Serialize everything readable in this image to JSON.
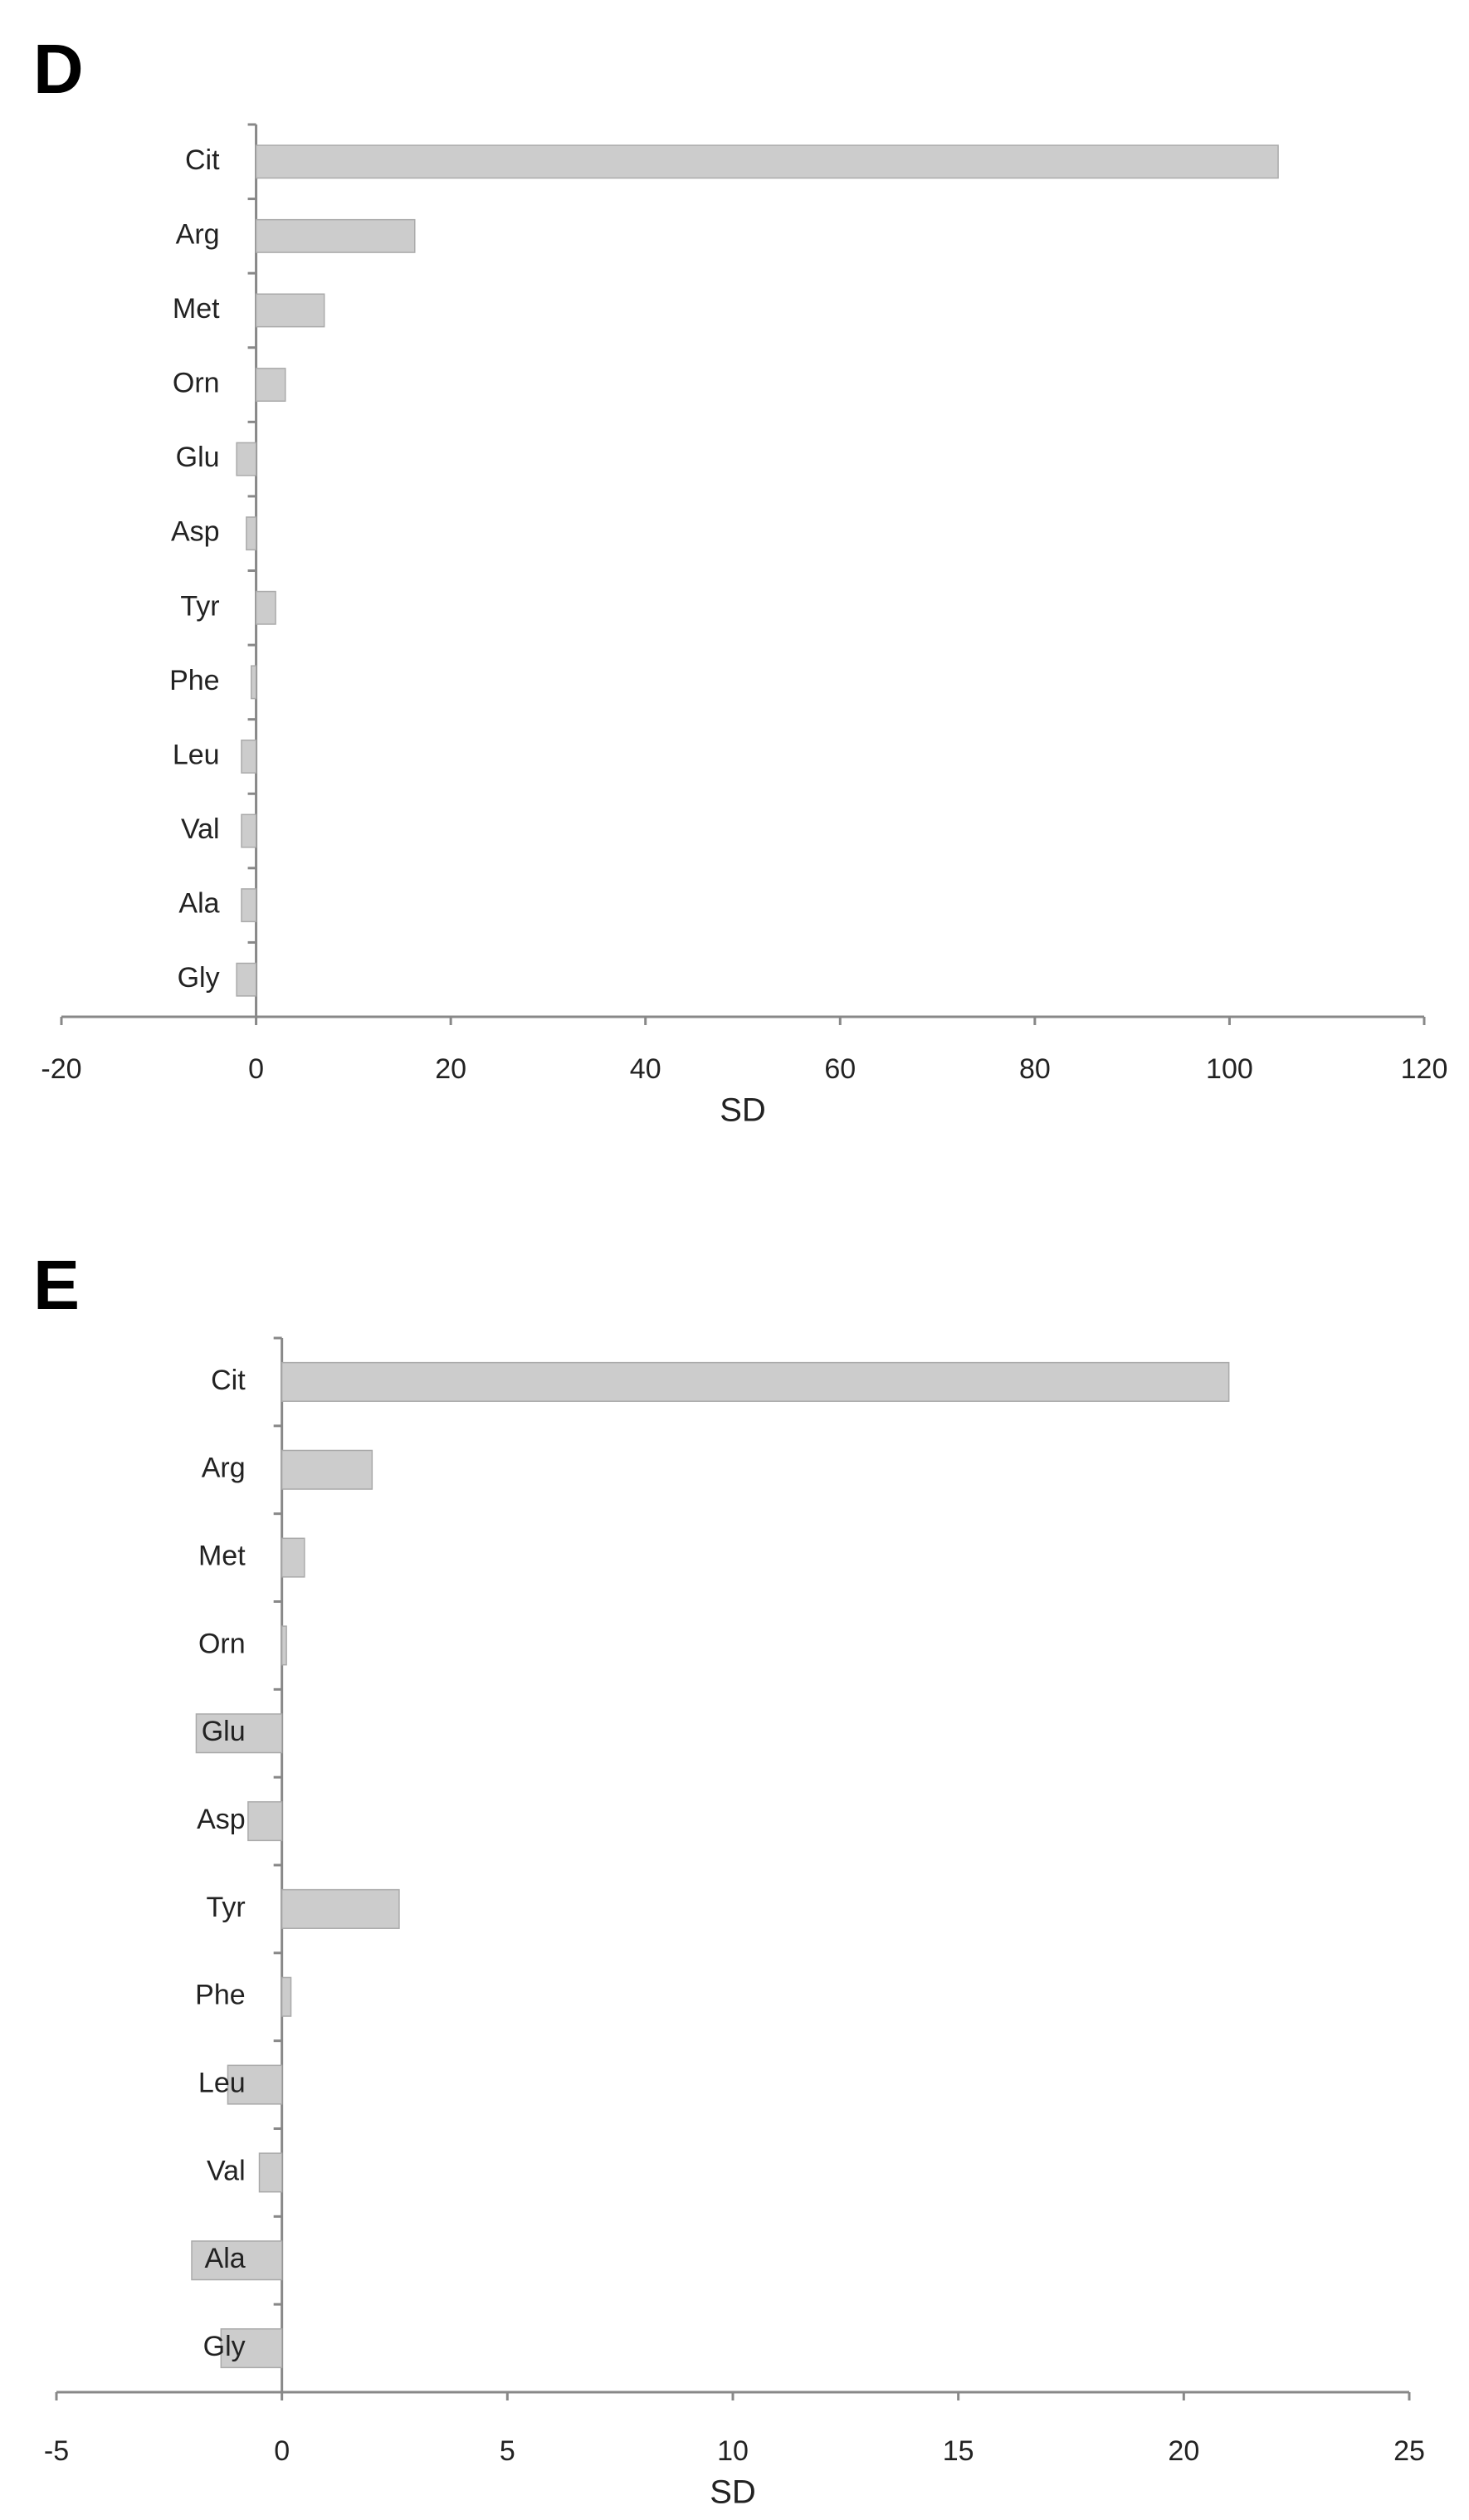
{
  "chart_data": [
    {
      "type": "bar",
      "orientation": "horizontal",
      "title": "D",
      "x_label": "SD",
      "categories": [
        "Cit",
        "Arg",
        "Met",
        "Orn",
        "Glu",
        "Asp",
        "Tyr",
        "Phe",
        "Leu",
        "Val",
        "Ala",
        "Gly"
      ],
      "values": [
        105,
        16.3,
        7,
        3,
        -2,
        -1,
        2,
        -0.5,
        -1.5,
        -1.5,
        -1.5,
        -2
      ],
      "color": "#cccccc",
      "xlim": [
        -20,
        120
      ],
      "xticks": [
        -20,
        0,
        20,
        40,
        60,
        80,
        100,
        120
      ],
      "grid": false
    },
    {
      "type": "bar",
      "orientation": "horizontal",
      "title": "E",
      "x_label": "SD",
      "categories": [
        "Cit",
        "Arg",
        "Met",
        "Orn",
        "Glu",
        "Asp",
        "Tyr",
        "Phe",
        "Leu",
        "Val",
        "Ala",
        "Gly"
      ],
      "values": [
        21,
        2,
        0.5,
        0.1,
        -1.9,
        -0.75,
        2.6,
        0.2,
        -1.2,
        -0.5,
        -2,
        -1.35
      ],
      "color": "#cccccc",
      "xlim": [
        -5,
        25
      ],
      "xticks": [
        -5,
        0,
        5,
        10,
        15,
        20,
        25
      ],
      "grid": false
    }
  ]
}
